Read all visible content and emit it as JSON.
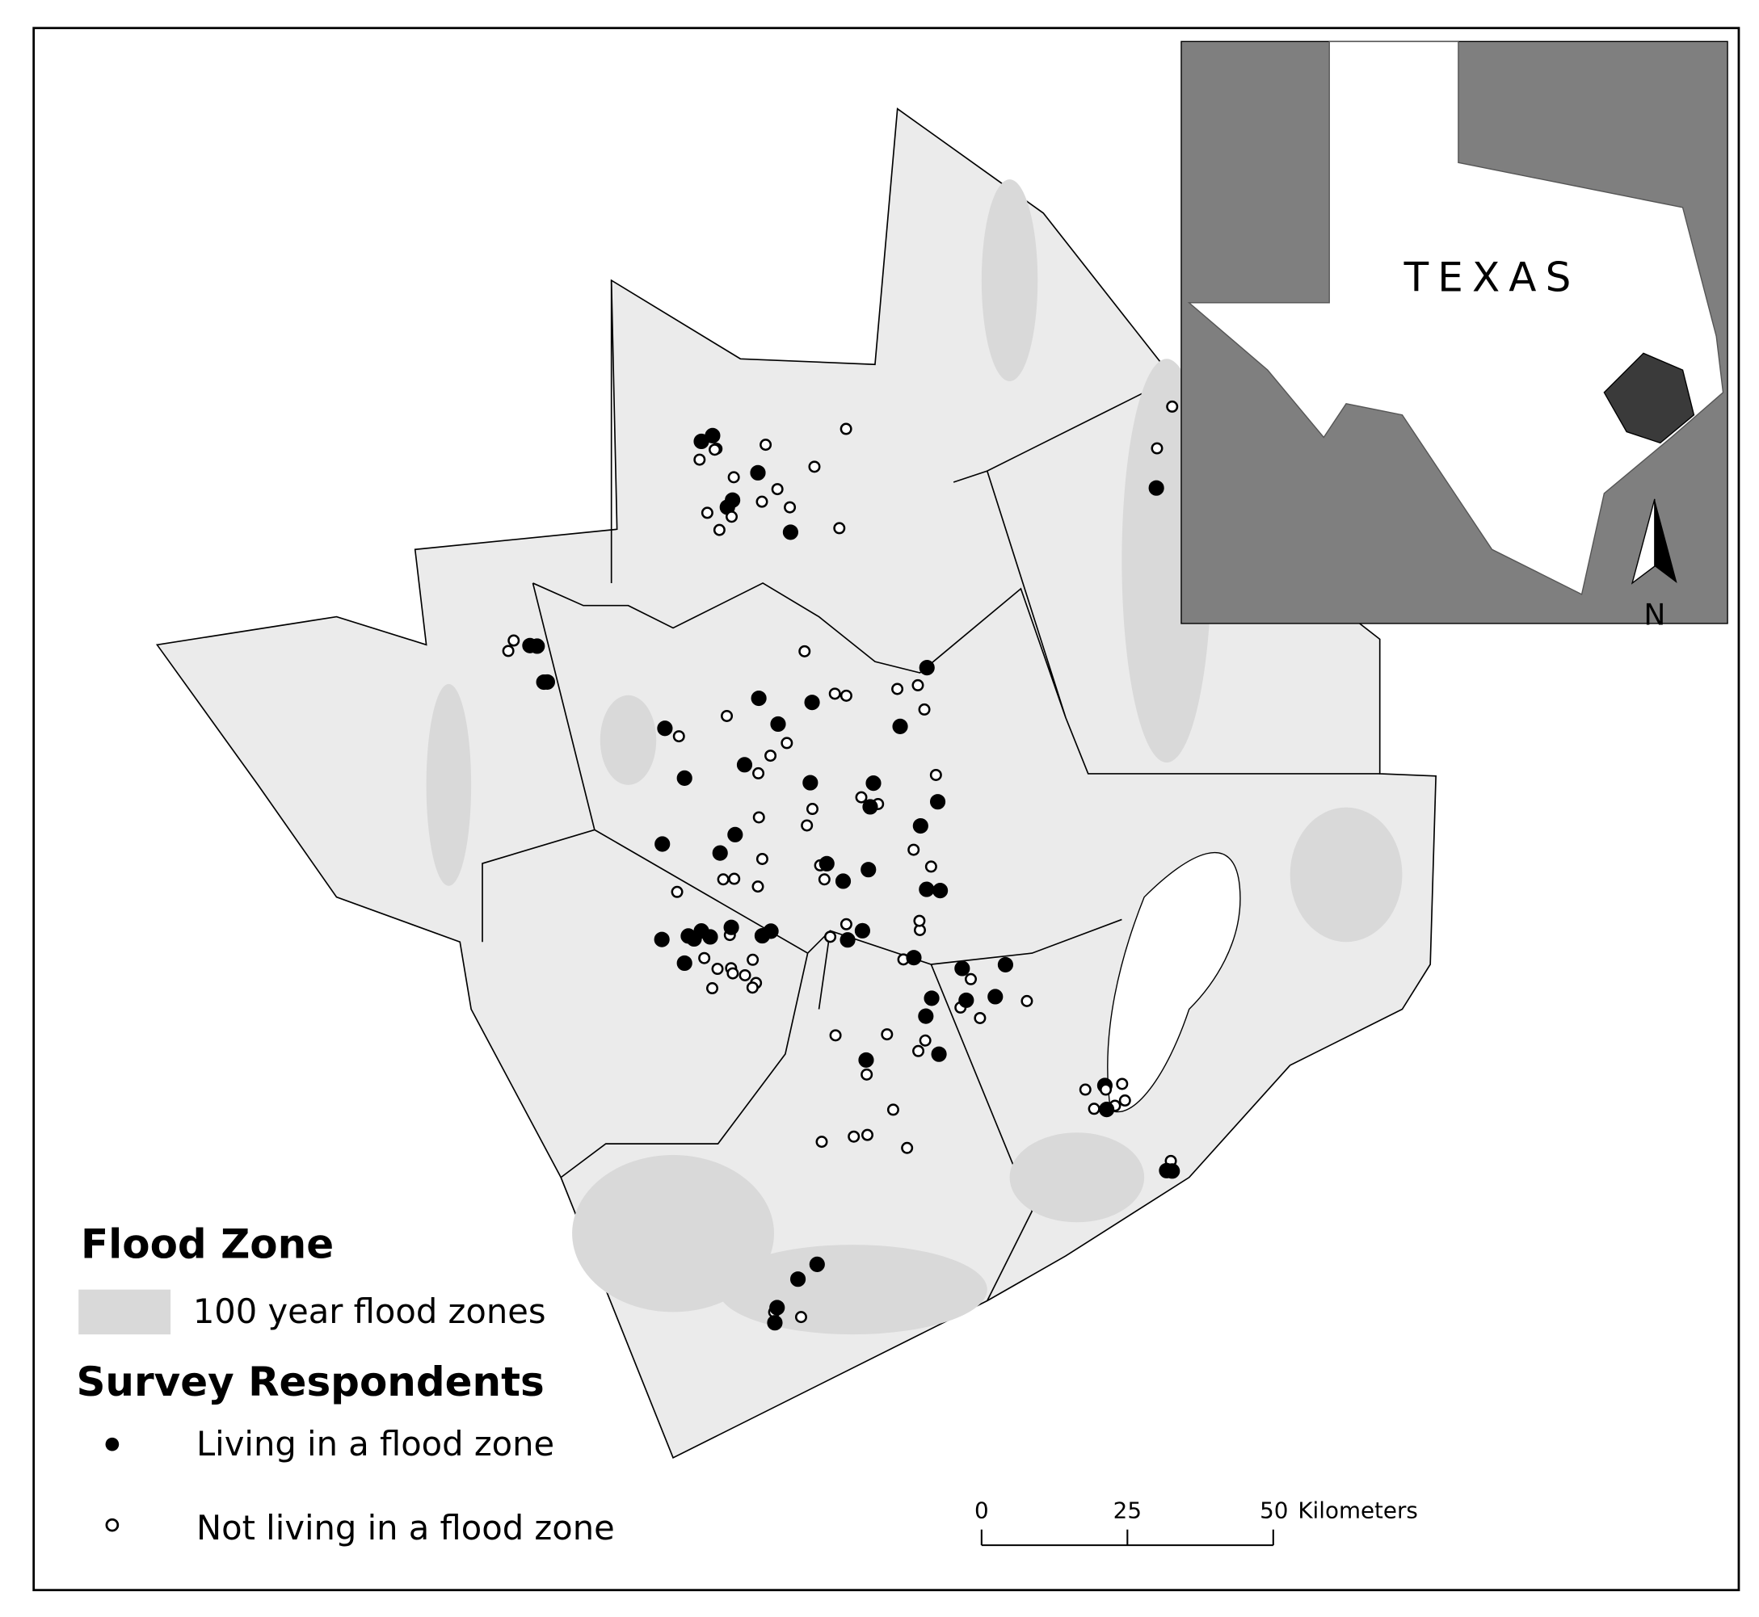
{
  "legend": {
    "flood_zone": {
      "title": "Flood Zone",
      "items": [
        "100 year flood zones"
      ]
    },
    "respondents": {
      "title": "Survey Respondents",
      "items": [
        "Living in a flood zone",
        "Not living in a flood zone"
      ]
    }
  },
  "inset": {
    "label": "TEXAS",
    "north": "N"
  },
  "scale_bar": {
    "ticks": [
      0,
      25,
      50
    ],
    "unit": "Kilometers"
  }
}
